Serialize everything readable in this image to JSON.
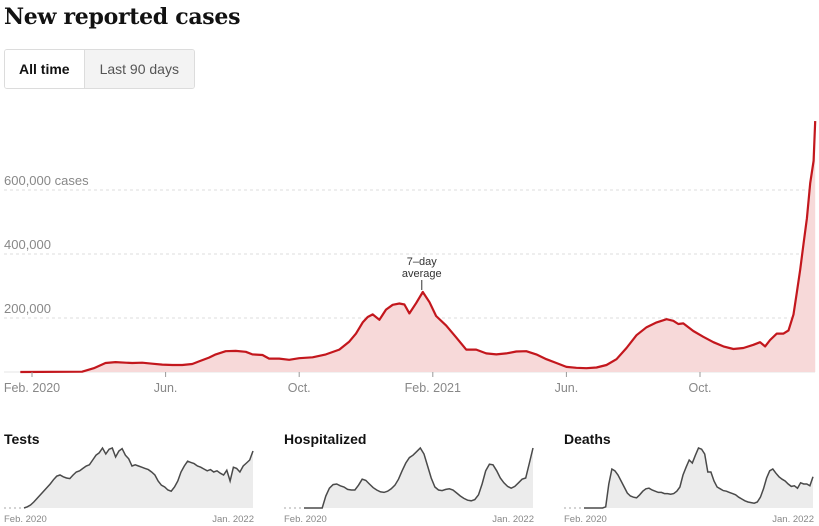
{
  "title": "New reported cases",
  "tabs": [
    {
      "label": "All time",
      "active": true
    },
    {
      "label": "Last 90 days",
      "active": false
    }
  ],
  "colors": {
    "line": "#c3171d",
    "area": "#f7d9d9",
    "mini_line": "#4a4a4a",
    "mini_area": "#ececec",
    "grid": "#dddddd",
    "axis_text": "#888888"
  },
  "chart_data": [
    {
      "type": "area",
      "title": "New reported cases",
      "series_name": "7-day average",
      "annotation": {
        "line1": "7–day",
        "line2": "average",
        "x": 11.7
      },
      "x_unit": "months since Feb. 2020",
      "xlim": [
        -0.35,
        23.5
      ],
      "ylim": [
        0,
        810000
      ],
      "y_ticks": [
        {
          "value": 200000,
          "label": "200,000"
        },
        {
          "value": 400000,
          "label": "400,000"
        },
        {
          "value": 600000,
          "label": "600,000 cases"
        }
      ],
      "x_ticks": [
        {
          "value": 0,
          "label": "Feb. 2020"
        },
        {
          "value": 4,
          "label": "Jun."
        },
        {
          "value": 8,
          "label": "Oct."
        },
        {
          "value": 12,
          "label": "Feb. 2021"
        },
        {
          "value": 16,
          "label": "Jun."
        },
        {
          "value": 20,
          "label": "Oct."
        }
      ],
      "x": [
        -0.35,
        1.5,
        1.85,
        2.2,
        2.5,
        2.8,
        3.0,
        3.3,
        3.6,
        3.9,
        4.2,
        4.5,
        4.8,
        5.0,
        5.3,
        5.5,
        5.8,
        6.1,
        6.4,
        6.6,
        6.9,
        7.1,
        7.4,
        7.7,
        8.0,
        8.4,
        8.8,
        9.2,
        9.5,
        9.7,
        9.9,
        10.05,
        10.2,
        10.4,
        10.6,
        10.8,
        11.0,
        11.15,
        11.3,
        11.5,
        11.7,
        11.9,
        12.1,
        12.4,
        12.7,
        13.0,
        13.3,
        13.6,
        13.9,
        14.2,
        14.5,
        14.8,
        15.1,
        15.4,
        15.7,
        16.0,
        16.3,
        16.6,
        16.9,
        17.2,
        17.5,
        17.8,
        18.1,
        18.4,
        18.7,
        19.0,
        19.2,
        19.35,
        19.5,
        19.8,
        20.1,
        20.4,
        20.7,
        21.0,
        21.3,
        21.6,
        21.8,
        21.95,
        22.1,
        22.3,
        22.5,
        22.65,
        22.8,
        22.9,
        23.0,
        23.1,
        23.2,
        23.3,
        23.4,
        23.45
      ],
      "values": [
        0,
        1000,
        12000,
        28000,
        31000,
        29000,
        28000,
        29000,
        26000,
        23000,
        22000,
        22000,
        25000,
        33000,
        45000,
        55000,
        65000,
        66000,
        63000,
        55000,
        53000,
        42000,
        42000,
        38000,
        43000,
        46000,
        55000,
        70000,
        95000,
        120000,
        155000,
        172000,
        180000,
        163000,
        195000,
        210000,
        214000,
        211000,
        183000,
        215000,
        250000,
        218000,
        175000,
        145000,
        108000,
        70000,
        70000,
        58000,
        55000,
        58000,
        64000,
        65000,
        55000,
        40000,
        28000,
        16000,
        13000,
        12000,
        14000,
        22000,
        40000,
        75000,
        115000,
        140000,
        155000,
        165000,
        160000,
        150000,
        152000,
        128000,
        110000,
        93000,
        80000,
        72000,
        75000,
        85000,
        93000,
        80000,
        100000,
        120000,
        120000,
        130000,
        180000,
        250000,
        320000,
        400000,
        480000,
        590000,
        660000,
        784000
      ]
    },
    {
      "type": "area",
      "title": "Tests",
      "x_ticks": [
        {
          "value": 0,
          "label": "Feb. 2020"
        },
        {
          "value": 23,
          "label": "Jan. 2022"
        }
      ],
      "values": [
        0,
        2,
        5,
        10,
        16,
        22,
        28,
        34,
        40,
        47,
        53,
        55,
        52,
        50,
        49,
        55,
        60,
        62,
        66,
        70,
        72,
        80,
        88,
        92,
        100,
        90,
        98,
        100,
        85,
        95,
        99,
        88,
        82,
        70,
        72,
        70,
        68,
        66,
        64,
        60,
        55,
        45,
        38,
        35,
        30,
        28,
        35,
        45,
        60,
        70,
        78,
        76,
        74,
        70,
        68,
        65,
        62,
        64,
        60,
        62,
        58,
        55,
        63,
        45,
        68,
        66,
        60,
        70,
        75,
        80,
        95
      ],
      "note": "relative scale"
    },
    {
      "type": "area",
      "title": "Hospitalized",
      "x_ticks": [
        {
          "value": 0,
          "label": "Feb. 2020"
        },
        {
          "value": 23,
          "label": "Jan. 2022"
        }
      ],
      "values": [
        0,
        0,
        0,
        0,
        0,
        0,
        20,
        33,
        39,
        40,
        37,
        35,
        31,
        30,
        30,
        38,
        48,
        46,
        40,
        34,
        30,
        27,
        26,
        28,
        32,
        38,
        48,
        62,
        75,
        84,
        88,
        94,
        100,
        90,
        70,
        50,
        35,
        30,
        29,
        31,
        32,
        30,
        25,
        20,
        16,
        13,
        12,
        14,
        22,
        40,
        62,
        73,
        72,
        62,
        50,
        42,
        36,
        33,
        36,
        42,
        48,
        50,
        75,
        100
      ],
      "note": "relative scale"
    },
    {
      "type": "area",
      "title": "Deaths",
      "x_ticks": [
        {
          "value": 0,
          "label": "Feb. 2020"
        },
        {
          "value": 23,
          "label": "Jan. 2022"
        }
      ],
      "values": [
        0,
        0,
        0,
        0,
        0,
        0,
        0,
        2,
        40,
        65,
        62,
        55,
        45,
        35,
        25,
        20,
        18,
        17,
        22,
        28,
        32,
        33,
        30,
        28,
        26,
        26,
        24,
        24,
        23,
        24,
        28,
        35,
        55,
        68,
        80,
        75,
        88,
        100,
        98,
        90,
        60,
        60,
        45,
        35,
        32,
        29,
        28,
        26,
        24,
        22,
        18,
        15,
        12,
        10,
        9,
        8,
        10,
        18,
        32,
        50,
        62,
        65,
        58,
        52,
        48,
        45,
        40,
        36,
        37,
        33,
        42,
        40,
        40,
        37,
        52
      ],
      "note": "relative scale"
    }
  ]
}
